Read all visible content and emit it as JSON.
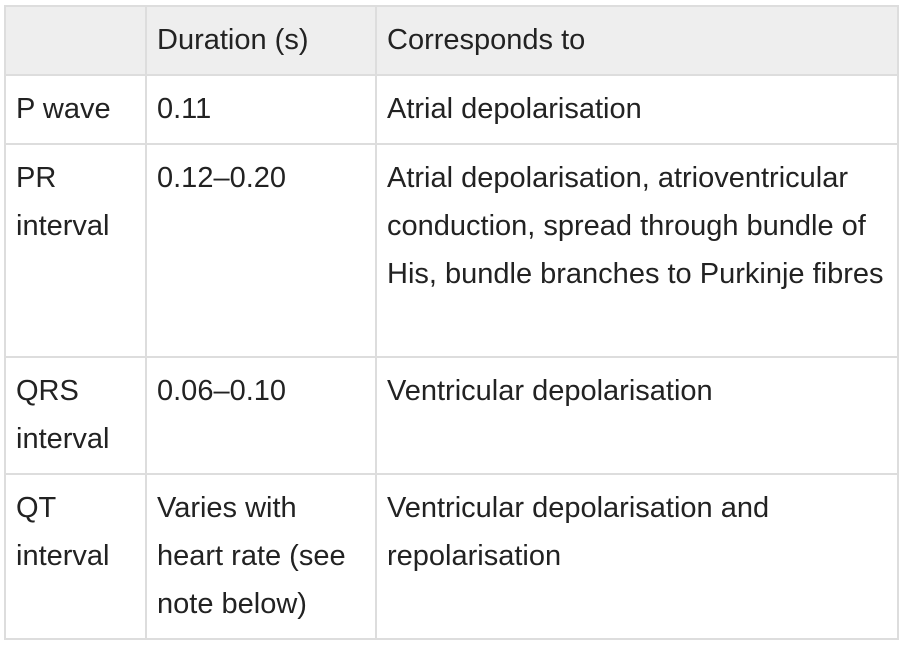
{
  "table": {
    "headers": [
      "",
      "Duration (s)",
      "Corresponds to"
    ],
    "rows": [
      [
        "P wave",
        "0.11",
        "Atrial depolarisation"
      ],
      [
        "PR interval",
        "0.12–0.20",
        "Atrial depolarisation, atrioventricular conduction, spread through bundle of His, bundle branches to Purkinje fibres"
      ],
      [
        "QRS interval",
        "0.06–0.10",
        "Ventricular depolarisation"
      ],
      [
        "QT interval",
        "Varies with heart rate (see note below)",
        "Ventricular depolarisation and repolarisation"
      ]
    ]
  }
}
